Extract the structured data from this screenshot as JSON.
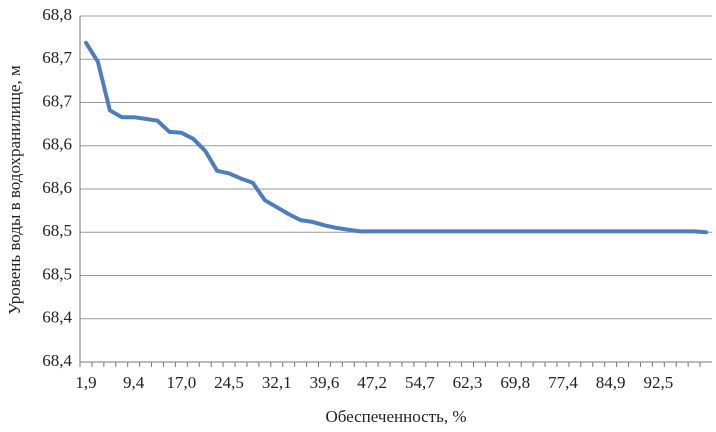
{
  "chart_data": {
    "type": "line",
    "y_label": "Уровень воды в водохранилище, м",
    "x_label": "Обеспеченность, %",
    "categories": [
      "1,9",
      null,
      null,
      null,
      "9,4",
      null,
      null,
      null,
      "17,0",
      null,
      null,
      null,
      "24,5",
      null,
      null,
      null,
      "32,1",
      null,
      null,
      null,
      "39,6",
      null,
      null,
      null,
      "47,2",
      null,
      null,
      null,
      "54,7",
      null,
      null,
      null,
      "62,3",
      null,
      null,
      null,
      "69,8",
      null,
      null,
      null,
      "77,4",
      null,
      null,
      null,
      "84,9",
      null,
      null,
      null,
      "92,5",
      null,
      null,
      null,
      null
    ],
    "series": [
      {
        "color": "#4a7ebf",
        "values": [
          68.769,
          68.747,
          68.691,
          68.683,
          68.683,
          68.681,
          68.679,
          68.666,
          68.665,
          68.658,
          68.644,
          68.621,
          68.618,
          68.612,
          68.607,
          68.587,
          68.579,
          68.571,
          68.564,
          68.562,
          68.558,
          68.555,
          68.553,
          68.551,
          68.551,
          68.551,
          68.551,
          68.551,
          68.551,
          68.551,
          68.551,
          68.551,
          68.551,
          68.551,
          68.551,
          68.551,
          68.551,
          68.551,
          68.551,
          68.551,
          68.551,
          68.551,
          68.551,
          68.551,
          68.551,
          68.551,
          68.551,
          68.551,
          68.551,
          68.551,
          68.551,
          68.551,
          68.55
        ]
      }
    ],
    "ylim": [
      68.4,
      68.8
    ],
    "yticks": [
      {
        "value": 68.4,
        "label": "68,4"
      },
      {
        "value": 68.45,
        "label": "68,4"
      },
      {
        "value": 68.5,
        "label": "68,5"
      },
      {
        "value": 68.55,
        "label": "68,5"
      },
      {
        "value": 68.6,
        "label": "68,6"
      },
      {
        "value": 68.65,
        "label": "68,6"
      },
      {
        "value": 68.7,
        "label": "68,7"
      },
      {
        "value": 68.75,
        "label": "68,7"
      },
      {
        "value": 68.8,
        "label": "68,8"
      }
    ],
    "grid": true
  }
}
